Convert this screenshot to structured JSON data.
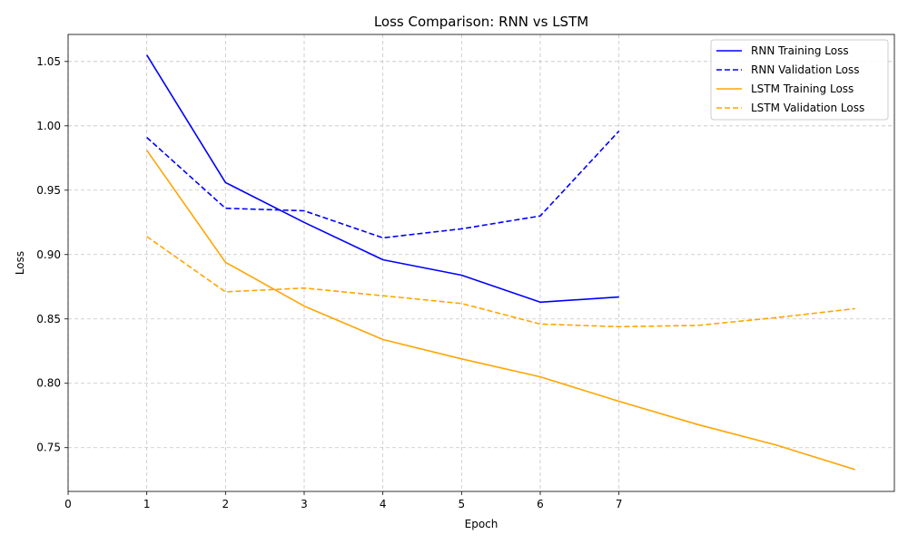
{
  "chart_data": {
    "type": "line",
    "title": "Loss Comparison: RNN vs LSTM",
    "xlabel": "Epoch",
    "ylabel": "Loss",
    "xlim": [
      0,
      10.5
    ],
    "ylim": [
      0.716,
      1.071
    ],
    "xticks": [
      0,
      1,
      2,
      3,
      4,
      5,
      6,
      7
    ],
    "yticks": [
      0.75,
      0.8,
      0.85,
      0.9,
      0.95,
      1.0,
      1.05
    ],
    "ytick_labels": [
      "0.75",
      "0.80",
      "0.85",
      "0.90",
      "0.95",
      "1.00",
      "1.05"
    ],
    "grid": true,
    "legend_position": "top-right",
    "series": [
      {
        "name": "RNN Training Loss",
        "color": "#0000ff",
        "style": "solid",
        "x": [
          1,
          2,
          3,
          4,
          5,
          6,
          7
        ],
        "y": [
          1.055,
          0.956,
          0.925,
          0.896,
          0.884,
          0.863,
          0.867
        ]
      },
      {
        "name": "RNN Validation Loss",
        "color": "#0000ff",
        "style": "dashed",
        "x": [
          1,
          2,
          3,
          4,
          5,
          6,
          7
        ],
        "y": [
          0.991,
          0.936,
          0.934,
          0.913,
          0.92,
          0.93,
          0.996
        ]
      },
      {
        "name": "LSTM Training Loss",
        "color": "#ffa500",
        "style": "solid",
        "x": [
          1,
          2,
          3,
          4,
          5,
          6,
          7,
          8,
          9,
          10
        ],
        "y": [
          0.981,
          0.894,
          0.86,
          0.834,
          0.819,
          0.805,
          0.786,
          0.768,
          0.752,
          0.733
        ]
      },
      {
        "name": "LSTM Validation Loss",
        "color": "#ffa500",
        "style": "dashed",
        "x": [
          1,
          2,
          3,
          4,
          5,
          6,
          7,
          8,
          9,
          10
        ],
        "y": [
          0.914,
          0.871,
          0.874,
          0.868,
          0.862,
          0.846,
          0.844,
          0.845,
          0.851,
          0.858
        ]
      }
    ]
  }
}
